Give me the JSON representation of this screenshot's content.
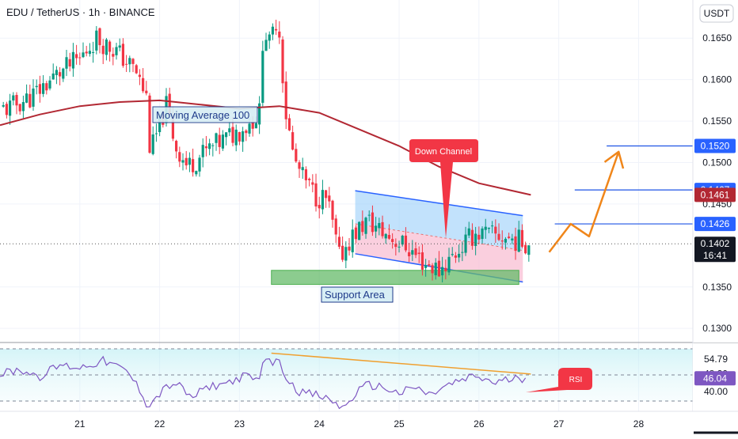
{
  "header": {
    "symbol": "EDU / TetherUS · 1h · BINANCE",
    "currency_button": "USDT"
  },
  "chart_data": [
    {
      "type": "candlestick",
      "title": "EDU / TetherUS · 1h · BINANCE",
      "x_ticks": [
        "21",
        "22",
        "23",
        "24",
        "25",
        "26",
        "27",
        "28"
      ],
      "y_ticks": [
        "0.1650",
        "0.1600",
        "0.1550",
        "0.1500",
        "0.1450",
        "0.1350",
        "0.1300"
      ],
      "ylim": [
        0.1283,
        0.1696
      ],
      "close_path": [
        [
          20.1,
          0.1565
        ],
        [
          20.4,
          0.158
        ],
        [
          20.7,
          0.1605
        ],
        [
          21.0,
          0.1625
        ],
        [
          21.2,
          0.165
        ],
        [
          21.45,
          0.1635
        ],
        [
          21.7,
          0.161
        ],
        [
          21.85,
          0.1575
        ],
        [
          21.88,
          0.151
        ],
        [
          22.0,
          0.1545
        ],
        [
          22.08,
          0.157
        ],
        [
          22.2,
          0.152
        ],
        [
          22.35,
          0.1495
        ],
        [
          22.6,
          0.1515
        ],
        [
          22.85,
          0.153
        ],
        [
          23.1,
          0.1545
        ],
        [
          23.25,
          0.156
        ],
        [
          23.3,
          0.1665
        ],
        [
          23.38,
          0.164
        ],
        [
          23.48,
          0.168
        ],
        [
          23.58,
          0.156
        ],
        [
          23.68,
          0.1505
        ],
        [
          23.8,
          0.148
        ],
        [
          23.95,
          0.146
        ],
        [
          24.1,
          0.1455
        ],
        [
          24.25,
          0.1385
        ],
        [
          24.4,
          0.141
        ],
        [
          24.6,
          0.143
        ],
        [
          24.8,
          0.1415
        ],
        [
          25.1,
          0.1398
        ],
        [
          25.3,
          0.138
        ],
        [
          25.5,
          0.137
        ],
        [
          25.7,
          0.139
        ],
        [
          25.95,
          0.1415
        ],
        [
          26.3,
          0.141
        ],
        [
          26.65,
          0.1402
        ]
      ],
      "moving_average_100": [
        [
          20.0,
          0.1545
        ],
        [
          20.5,
          0.1558
        ],
        [
          21.0,
          0.1568
        ],
        [
          21.5,
          0.1573
        ],
        [
          22.0,
          0.1575
        ],
        [
          22.5,
          0.157
        ],
        [
          23.0,
          0.1565
        ],
        [
          23.5,
          0.1568
        ],
        [
          24.0,
          0.156
        ],
        [
          24.5,
          0.154
        ],
        [
          25.0,
          0.152
        ],
        [
          25.5,
          0.1495
        ],
        [
          26.0,
          0.1475
        ],
        [
          26.65,
          0.1461
        ]
      ],
      "down_channel": {
        "upper": [
          [
            24.45,
            0.1466
          ],
          [
            26.55,
            0.1436
          ]
        ],
        "lower": [
          [
            24.45,
            0.139
          ],
          [
            26.55,
            0.1356
          ]
        ]
      },
      "support_area": {
        "label": "Support Area",
        "range": [
          0.1353,
          0.137
        ],
        "x": [
          23.4,
          26.5
        ]
      },
      "projection": [
        [
          26.88,
          0.1392
        ],
        [
          27.15,
          0.1426
        ],
        [
          27.38,
          0.1411
        ],
        [
          27.75,
          0.1513
        ]
      ],
      "price_lines": [
        {
          "label": "0.1520",
          "x_start": 27.6,
          "color": "#1e53e5"
        },
        {
          "label": "0.1467",
          "x_start": 27.2,
          "color": "#1e53e5"
        },
        {
          "label": "0.1426",
          "x_start": 26.95,
          "color": "#1e53e5"
        }
      ],
      "price_tags": [
        {
          "label": "0.1520",
          "color": "#2962ff"
        },
        {
          "label": "0.1467",
          "color": "#2962ff"
        },
        {
          "label": "0.1461",
          "color": "#b22833"
        },
        {
          "label": "0.1426",
          "color": "#2962ff"
        },
        {
          "label": "0.1402",
          "sub": "16:41",
          "color": "#131722"
        }
      ],
      "annotations": {
        "moving_average": "Moving Average 100",
        "down_channel": "Down Channel",
        "support": "Support Area",
        "rsi": "RSI"
      }
    },
    {
      "type": "line",
      "name": "RSI",
      "ylim": [
        31,
        62
      ],
      "y_ticks": [
        "54.79",
        "48.20",
        "40.00"
      ],
      "tags": [
        {
          "label": "46.04",
          "color": "#7e57c2"
        }
      ],
      "values": [
        [
          20.0,
          48
        ],
        [
          20.25,
          50
        ],
        [
          20.5,
          47
        ],
        [
          20.75,
          52
        ],
        [
          21.0,
          51
        ],
        [
          21.3,
          54
        ],
        [
          21.6,
          49
        ],
        [
          21.8,
          38
        ],
        [
          21.85,
          33
        ],
        [
          22.05,
          41
        ],
        [
          22.2,
          44
        ],
        [
          22.4,
          37
        ],
        [
          22.6,
          42
        ],
        [
          22.85,
          44
        ],
        [
          23.05,
          47
        ],
        [
          23.25,
          45
        ],
        [
          23.3,
          57
        ],
        [
          23.4,
          52
        ],
        [
          23.45,
          56
        ],
        [
          23.6,
          46
        ],
        [
          23.75,
          40
        ],
        [
          24.0,
          38
        ],
        [
          24.2,
          35
        ],
        [
          24.3,
          32
        ],
        [
          24.45,
          39
        ],
        [
          24.6,
          43
        ],
        [
          24.8,
          42
        ],
        [
          25.0,
          39
        ],
        [
          25.2,
          42
        ],
        [
          25.4,
          38
        ],
        [
          25.5,
          41
        ],
        [
          25.7,
          44
        ],
        [
          25.95,
          47
        ],
        [
          26.2,
          44
        ],
        [
          26.45,
          46
        ],
        [
          26.6,
          46.04
        ]
      ],
      "trendline": [
        [
          23.4,
          57.5
        ],
        [
          26.65,
          48.0
        ]
      ]
    }
  ]
}
